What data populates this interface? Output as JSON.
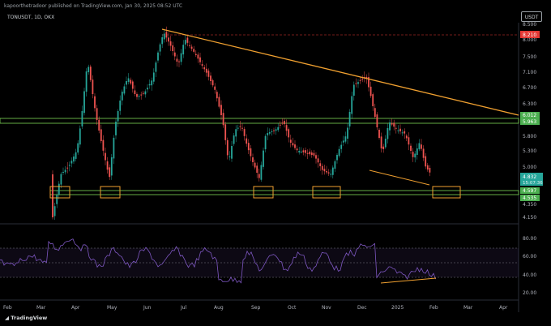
{
  "header": {
    "publisher": "kapoorthetradoor published on TradingView.com, Jan 30, 2025 08:52 UTC",
    "symbol": "TONUSDT, 1D, OKX",
    "currency": "USDT"
  },
  "branding": {
    "logo_text": "TradingView",
    "logo_icon": "tradingview-logo-icon"
  },
  "price_axis": {
    "labels": [
      "8.500",
      "8.000",
      "7.500",
      "7.100",
      "6.700",
      "6.300",
      "5.800",
      "5.300",
      "5.000",
      "4.350",
      "4.150"
    ]
  },
  "price_badges": {
    "high": "8.210",
    "upper_band": "6.012",
    "lower_band": "5.963",
    "current": "4.832",
    "countdown": "15:07:36",
    "support_top": "4.597",
    "support_bottom": "4.535"
  },
  "rsi_axis": {
    "labels": [
      "80.00",
      "60.00",
      "40.00",
      "20.00"
    ]
  },
  "time_axis": {
    "labels": [
      "Feb",
      "Mar",
      "Apr",
      "May",
      "Jun",
      "Jul",
      "Aug",
      "Sep",
      "Oct",
      "Nov",
      "Dec",
      "2025",
      "Feb",
      "Mar",
      "Apr"
    ]
  },
  "colors": {
    "background": "#000000",
    "bull": "#26a69a",
    "bear": "#ef5350",
    "trendline": "#f0a030",
    "band": "#7ed957",
    "rsi": "#7e57c2",
    "high_badge": "#e53935",
    "current_badge": "#26a69a"
  }
}
